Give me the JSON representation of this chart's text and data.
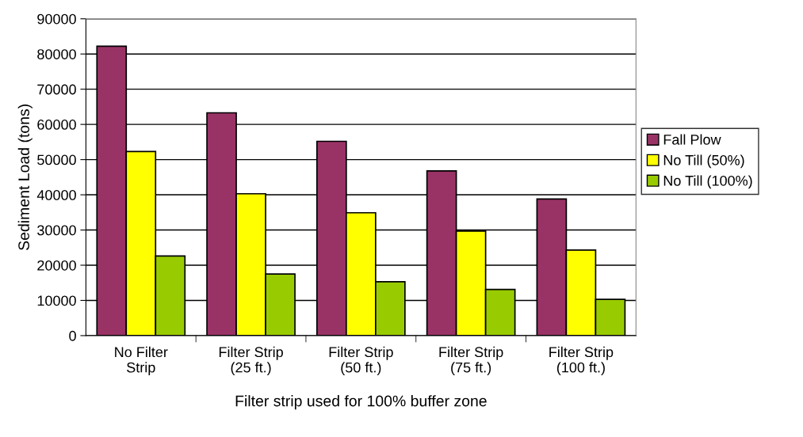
{
  "chart_data": {
    "type": "bar",
    "xlabel": "Filter strip used for 100% buffer zone",
    "ylabel": "Sediment Load (tons)",
    "categories": [
      "No Filter\nStrip",
      "Filter Strip\n(25 ft.)",
      "Filter Strip\n(50 ft.)",
      "Filter Strip\n(75 ft.)",
      "Filter Strip\n(100 ft.)"
    ],
    "series": [
      {
        "name": "Fall Plow",
        "color": "#993366",
        "values": [
          82200,
          63300,
          55200,
          46800,
          38800
        ]
      },
      {
        "name": "No Till (50%)",
        "color": "#ffff00",
        "values": [
          52300,
          40300,
          34900,
          29700,
          24300
        ]
      },
      {
        "name": "No Till (100%)",
        "color": "#99cc00",
        "values": [
          22600,
          17500,
          15300,
          13100,
          10300
        ]
      }
    ],
    "ylim": [
      0,
      90000
    ],
    "yticks": [
      0,
      10000,
      20000,
      30000,
      40000,
      50000,
      60000,
      70000,
      80000,
      90000
    ],
    "grid": "y",
    "legend": "right"
  }
}
